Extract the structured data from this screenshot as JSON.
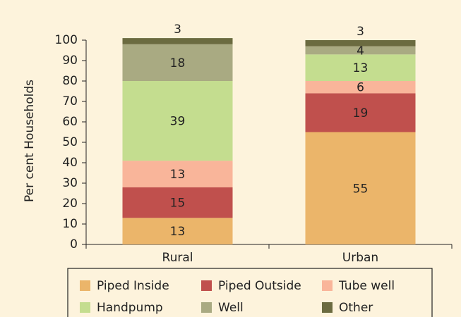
{
  "chart_data": {
    "type": "stacked_bar",
    "y_label": "Per cent Households",
    "categories": [
      "Rural",
      "Urban"
    ],
    "series": [
      {
        "name": "Piped Inside",
        "color": "#ebb56a",
        "values": [
          13,
          55
        ]
      },
      {
        "name": "Piped Outside",
        "color": "#c0504d",
        "values": [
          15,
          19
        ]
      },
      {
        "name": "Tube well",
        "color": "#f9b59a",
        "values": [
          13,
          6
        ]
      },
      {
        "name": "Handpump",
        "color": "#c4dd8f",
        "values": [
          39,
          13
        ]
      },
      {
        "name": "Well",
        "color": "#a9aa82",
        "values": [
          18,
          4
        ]
      },
      {
        "name": "Other",
        "color": "#6b6b40",
        "values": [
          3,
          3
        ]
      }
    ],
    "ylim": [
      0,
      100
    ],
    "yticks": [
      0,
      10,
      20,
      30,
      40,
      50,
      60,
      70,
      80,
      90,
      100
    ]
  }
}
